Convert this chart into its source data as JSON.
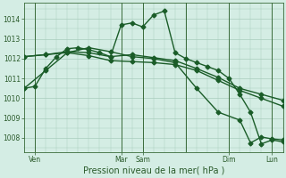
{
  "background_color": "#d4ede4",
  "grid_color": "#a8ccbc",
  "line_color": "#1a5c28",
  "title": "Pression niveau de la mer( hPa )",
  "ylabel_ticks": [
    1008,
    1009,
    1010,
    1011,
    1012,
    1013,
    1014
  ],
  "xlim": [
    0,
    48
  ],
  "ylim": [
    1007.3,
    1014.8
  ],
  "xtick_positions": [
    2,
    18,
    22,
    30,
    38,
    46
  ],
  "xtick_labels": [
    "Ven",
    "Mar",
    "Sam",
    "",
    "Dim",
    "Lun"
  ],
  "vline_positions": [
    2,
    18,
    22,
    30,
    38,
    46
  ],
  "series": [
    {
      "x": [
        0,
        2,
        4,
        6,
        8,
        10,
        12,
        14,
        16,
        18,
        20,
        22,
        24,
        26,
        28,
        30,
        32,
        34,
        36,
        38,
        40,
        42,
        44,
        46,
        48
      ],
      "y": [
        1010.5,
        1010.6,
        1011.5,
        1012.1,
        1012.5,
        1012.55,
        1012.45,
        1012.3,
        1012.1,
        1013.7,
        1013.8,
        1013.6,
        1014.2,
        1014.4,
        1012.3,
        1012.0,
        1011.8,
        1011.6,
        1011.4,
        1011.0,
        1010.2,
        1009.3,
        1007.7,
        1007.9,
        1007.8
      ]
    },
    {
      "x": [
        0,
        4,
        8,
        12,
        16,
        20,
        24,
        28,
        32,
        36,
        40,
        44,
        48
      ],
      "y": [
        1012.1,
        1012.2,
        1012.35,
        1012.3,
        1012.1,
        1012.2,
        1012.05,
        1011.9,
        1011.5,
        1011.05,
        1010.5,
        1010.2,
        1009.9
      ]
    },
    {
      "x": [
        0,
        4,
        8,
        12,
        16,
        20,
        24,
        28,
        32,
        36,
        40,
        44,
        48
      ],
      "y": [
        1012.1,
        1012.2,
        1012.3,
        1012.15,
        1011.9,
        1011.85,
        1011.8,
        1011.7,
        1011.4,
        1010.9,
        1010.4,
        1010.0,
        1009.6
      ]
    },
    {
      "x": [
        0,
        4,
        8,
        12,
        16,
        20,
        24,
        28,
        32,
        36,
        40,
        42,
        44,
        46,
        48
      ],
      "y": [
        1010.5,
        1011.4,
        1012.3,
        1012.55,
        1012.35,
        1012.1,
        1012.0,
        1011.8,
        1010.5,
        1009.3,
        1008.9,
        1007.75,
        1008.05,
        1007.95,
        1007.9
      ]
    }
  ],
  "marker": "D",
  "markersize": 2.5,
  "linewidth": 1.0
}
